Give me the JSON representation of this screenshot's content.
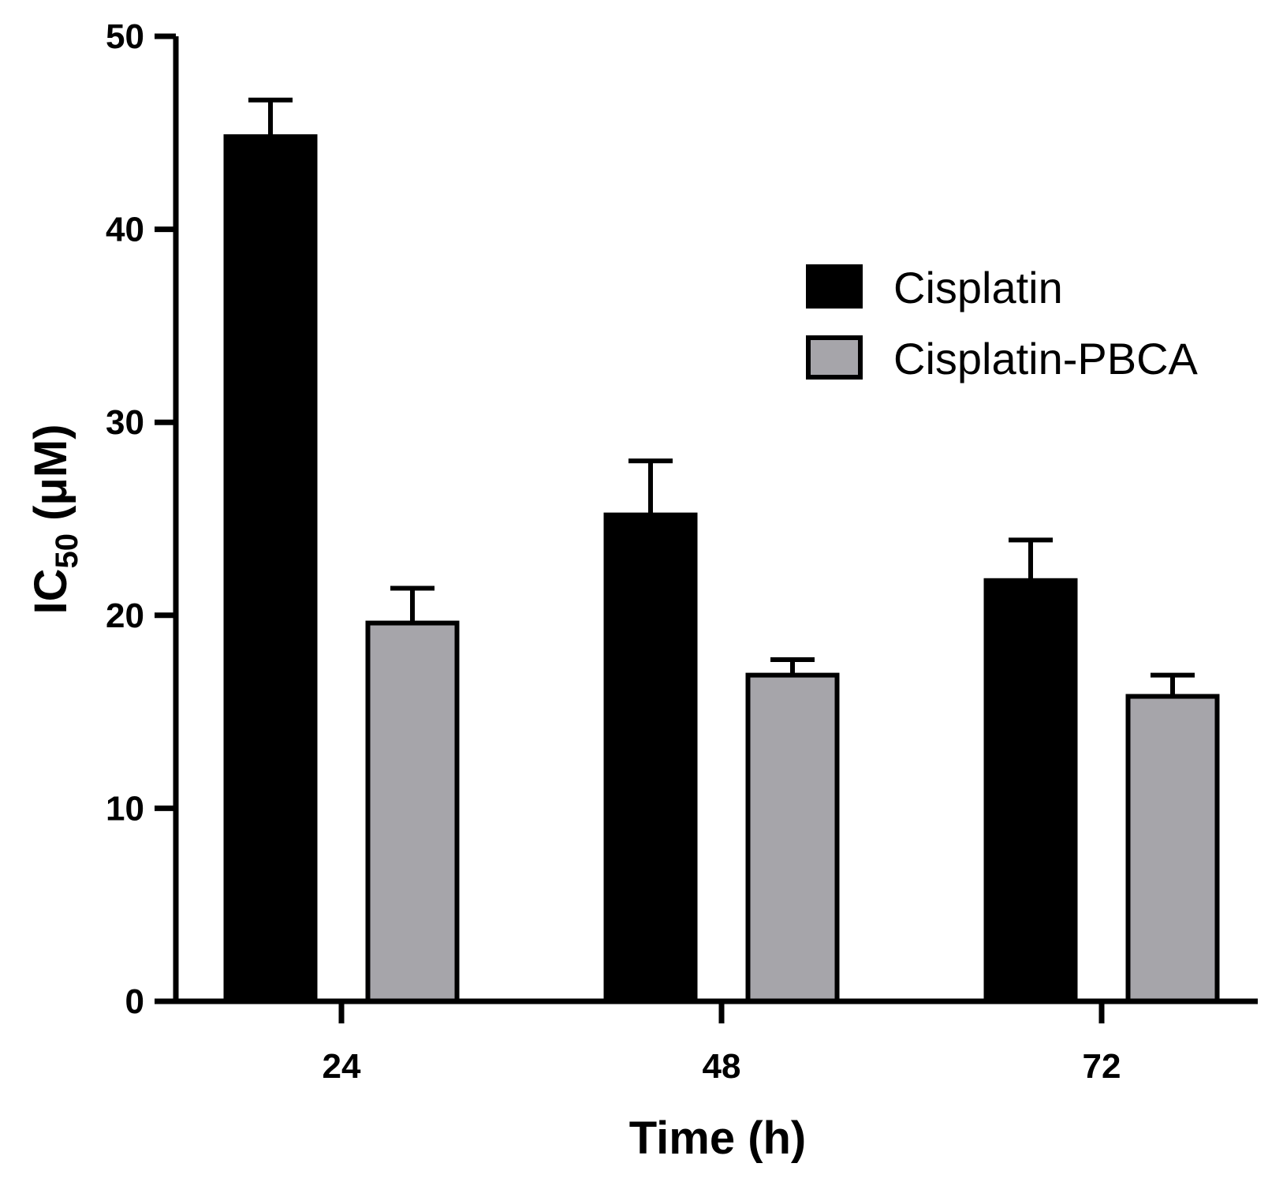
{
  "chart_data": {
    "type": "bar",
    "title": "",
    "xlabel": "Time (h)",
    "ylabel_main": "IC",
    "ylabel_sub": "50",
    "ylabel_unit": " (μM)",
    "categories": [
      "24",
      "48",
      "72"
    ],
    "series": [
      {
        "name": "Cisplatin",
        "color": "#000000",
        "values": [
          44.8,
          25.2,
          21.8
        ],
        "errors": [
          1.9,
          2.8,
          2.1
        ]
      },
      {
        "name": "Cisplatin-PBCA",
        "color": "#a6a5aa",
        "values": [
          19.6,
          16.9,
          15.8
        ],
        "errors": [
          1.8,
          0.8,
          1.1
        ]
      }
    ],
    "ylim": [
      0,
      50
    ],
    "yticks": [
      "0",
      "10",
      "20",
      "30",
      "40",
      "50"
    ],
    "grid": false,
    "legend_position": "top-right"
  }
}
